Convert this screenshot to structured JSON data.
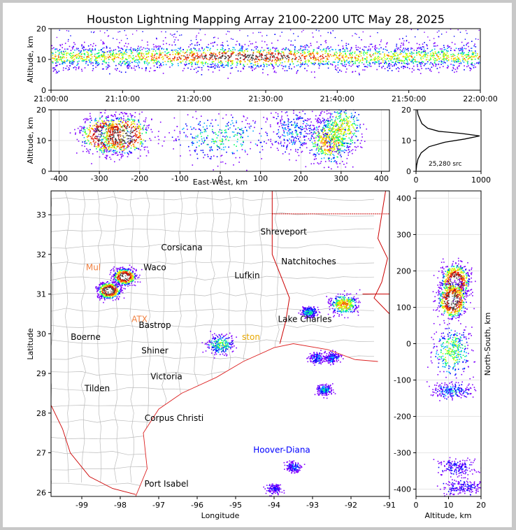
{
  "title": "Houston Lightning Mapping Array 2100-2200 UTC May 28, 2025",
  "colors": {
    "page_border": "#c8c8c8",
    "state_border": "#cc0000",
    "county_border": "#bbbbbb",
    "coast": "#dd2222",
    "density_scale": [
      "#7f00ff",
      "#0000ff",
      "#00aaff",
      "#00ff66",
      "#ccff00",
      "#ffcc00",
      "#ff4400",
      "#cc0000",
      "#444444",
      "#ffffff"
    ]
  },
  "chart_data": [
    {
      "id": "time_altitude",
      "type": "heatmap",
      "xlabel": "",
      "ylabel": "Altitude, km",
      "xlim": [
        "21:00:00",
        "22:00:00"
      ],
      "xticks": [
        "21:00:00",
        "21:10:00",
        "21:20:00",
        "21:30:00",
        "21:40:00",
        "21:50:00",
        "22:00:00"
      ],
      "ylim": [
        0,
        20
      ],
      "yticks": [
        "0",
        "10",
        "20"
      ],
      "band_center_km": 11,
      "band_halfwidth_km": 4
    },
    {
      "id": "ew_altitude",
      "type": "heatmap",
      "xlabel": "East-West, km",
      "ylabel": "Altitude, km",
      "xlim": [
        -420,
        420
      ],
      "xticks": [
        "-400",
        "-300",
        "-200",
        "-100",
        "0",
        "100",
        "200",
        "300",
        "400"
      ],
      "ylim": [
        0,
        20
      ],
      "yticks": [
        "0",
        "10",
        "20"
      ],
      "clusters": [
        {
          "x": -285,
          "alt": 12,
          "intensity": 1.0
        },
        {
          "x": -240,
          "alt": 12,
          "intensity": 1.0
        },
        {
          "x": 0,
          "alt": 11,
          "intensity": 0.3
        },
        {
          "x": 180,
          "alt": 13,
          "intensity": 0.2
        },
        {
          "x": 270,
          "alt": 10,
          "intensity": 0.6
        },
        {
          "x": 300,
          "alt": 14,
          "intensity": 0.5
        }
      ]
    },
    {
      "id": "altitude_histogram",
      "type": "line",
      "xlim": [
        0,
        1000
      ],
      "xticks": [
        "0",
        "1000"
      ],
      "ylim": [
        0,
        20
      ],
      "yticks": [
        "0",
        "10",
        "20"
      ],
      "annotation": "25,280 src",
      "points": [
        [
          0,
          0
        ],
        [
          5,
          1
        ],
        [
          10,
          2
        ],
        [
          30,
          4
        ],
        [
          80,
          6
        ],
        [
          200,
          8
        ],
        [
          450,
          9.5
        ],
        [
          750,
          10.5
        ],
        [
          980,
          11.5
        ],
        [
          700,
          12.3
        ],
        [
          350,
          13
        ],
        [
          180,
          14
        ],
        [
          90,
          15.5
        ],
        [
          60,
          17
        ],
        [
          30,
          18.5
        ],
        [
          20,
          20
        ]
      ]
    },
    {
      "id": "plan_view",
      "type": "scatter",
      "xlabel": "Longitude",
      "ylabel": "Latitude",
      "xlim": [
        -99.8,
        -91
      ],
      "ylim": [
        25.9,
        33.6
      ],
      "xticks": [
        "-99",
        "-98",
        "-97",
        "-96",
        "-95",
        "-94",
        "-93",
        "-92",
        "-91"
      ],
      "yticks": [
        "26",
        "27",
        "28",
        "29",
        "30",
        "31",
        "32",
        "33"
      ],
      "cities": [
        {
          "name": "Shreveport",
          "lon": -93.75,
          "lat": 32.5,
          "color": "#000000"
        },
        {
          "name": "Corsicana",
          "lon": -96.4,
          "lat": 32.1,
          "color": "#000000"
        },
        {
          "name": "Natchitoches",
          "lon": -93.1,
          "lat": 31.75,
          "color": "#000000"
        },
        {
          "name": "Mul",
          "lon": -98.7,
          "lat": 31.6,
          "color": "#f08040"
        },
        {
          "name": "Waco",
          "lon": -97.1,
          "lat": 31.6,
          "color": "#000000"
        },
        {
          "name": "Lufkin",
          "lon": -94.7,
          "lat": 31.4,
          "color": "#000000"
        },
        {
          "name": "ATX",
          "lon": -97.5,
          "lat": 30.3,
          "color": "#f08040"
        },
        {
          "name": "Bastrop",
          "lon": -97.1,
          "lat": 30.15,
          "color": "#000000"
        },
        {
          "name": "Lake Charles",
          "lon": -93.2,
          "lat": 30.3,
          "color": "#000000"
        },
        {
          "name": "Boerne",
          "lon": -98.9,
          "lat": 29.85,
          "color": "#000000"
        },
        {
          "name": "ston",
          "lon": -94.6,
          "lat": 29.85,
          "color": "#e8a800"
        },
        {
          "name": "Shiner",
          "lon": -97.1,
          "lat": 29.5,
          "color": "#000000"
        },
        {
          "name": "Victoria",
          "lon": -96.8,
          "lat": 28.85,
          "color": "#000000"
        },
        {
          "name": "Tilden",
          "lon": -98.6,
          "lat": 28.55,
          "color": "#000000"
        },
        {
          "name": "Corpus Christi",
          "lon": -96.6,
          "lat": 27.8,
          "color": "#000000"
        },
        {
          "name": "Hoover-Diana",
          "lon": -93.8,
          "lat": 27.0,
          "color": "#0000ff"
        },
        {
          "name": "Port Isabel",
          "lon": -96.8,
          "lat": 26.15,
          "color": "#000000"
        }
      ],
      "clusters": [
        {
          "lon": -98.3,
          "lat": 31.1,
          "intensity": 1.0
        },
        {
          "lon": -97.9,
          "lat": 31.45,
          "intensity": 1.0
        },
        {
          "lon": -95.4,
          "lat": 29.75,
          "intensity": 0.35
        },
        {
          "lon": -93.1,
          "lat": 30.55,
          "intensity": 0.3
        },
        {
          "lon": -92.2,
          "lat": 30.75,
          "intensity": 0.6
        },
        {
          "lon": -92.9,
          "lat": 29.4,
          "intensity": 0.2
        },
        {
          "lon": -92.5,
          "lat": 29.4,
          "intensity": 0.2
        },
        {
          "lon": -92.7,
          "lat": 28.6,
          "intensity": 0.25
        },
        {
          "lon": -93.5,
          "lat": 26.65,
          "intensity": 0.15
        },
        {
          "lon": -94.0,
          "lat": 26.1,
          "intensity": 0.1
        }
      ]
    },
    {
      "id": "altitude_ns",
      "type": "heatmap",
      "xlabel": "Altitude, km",
      "ylabel": "North-South, km",
      "xlim": [
        0,
        20
      ],
      "xticks": [
        "0",
        "10",
        "20"
      ],
      "ylim": [
        -420,
        420
      ],
      "yticks": [
        "-400",
        "-300",
        "-200",
        "-100",
        "0",
        "100",
        "200",
        "300",
        "400"
      ],
      "clusters": [
        {
          "ns": 170,
          "alt": 12,
          "intensity": 1.0
        },
        {
          "ns": 120,
          "alt": 11,
          "intensity": 1.0
        },
        {
          "ns": -20,
          "alt": 11,
          "intensity": 0.4
        },
        {
          "ns": -130,
          "alt": 11,
          "intensity": 0.2
        },
        {
          "ns": -340,
          "alt": 12,
          "intensity": 0.1
        },
        {
          "ns": -395,
          "alt": 14,
          "intensity": 0.1
        }
      ]
    }
  ]
}
